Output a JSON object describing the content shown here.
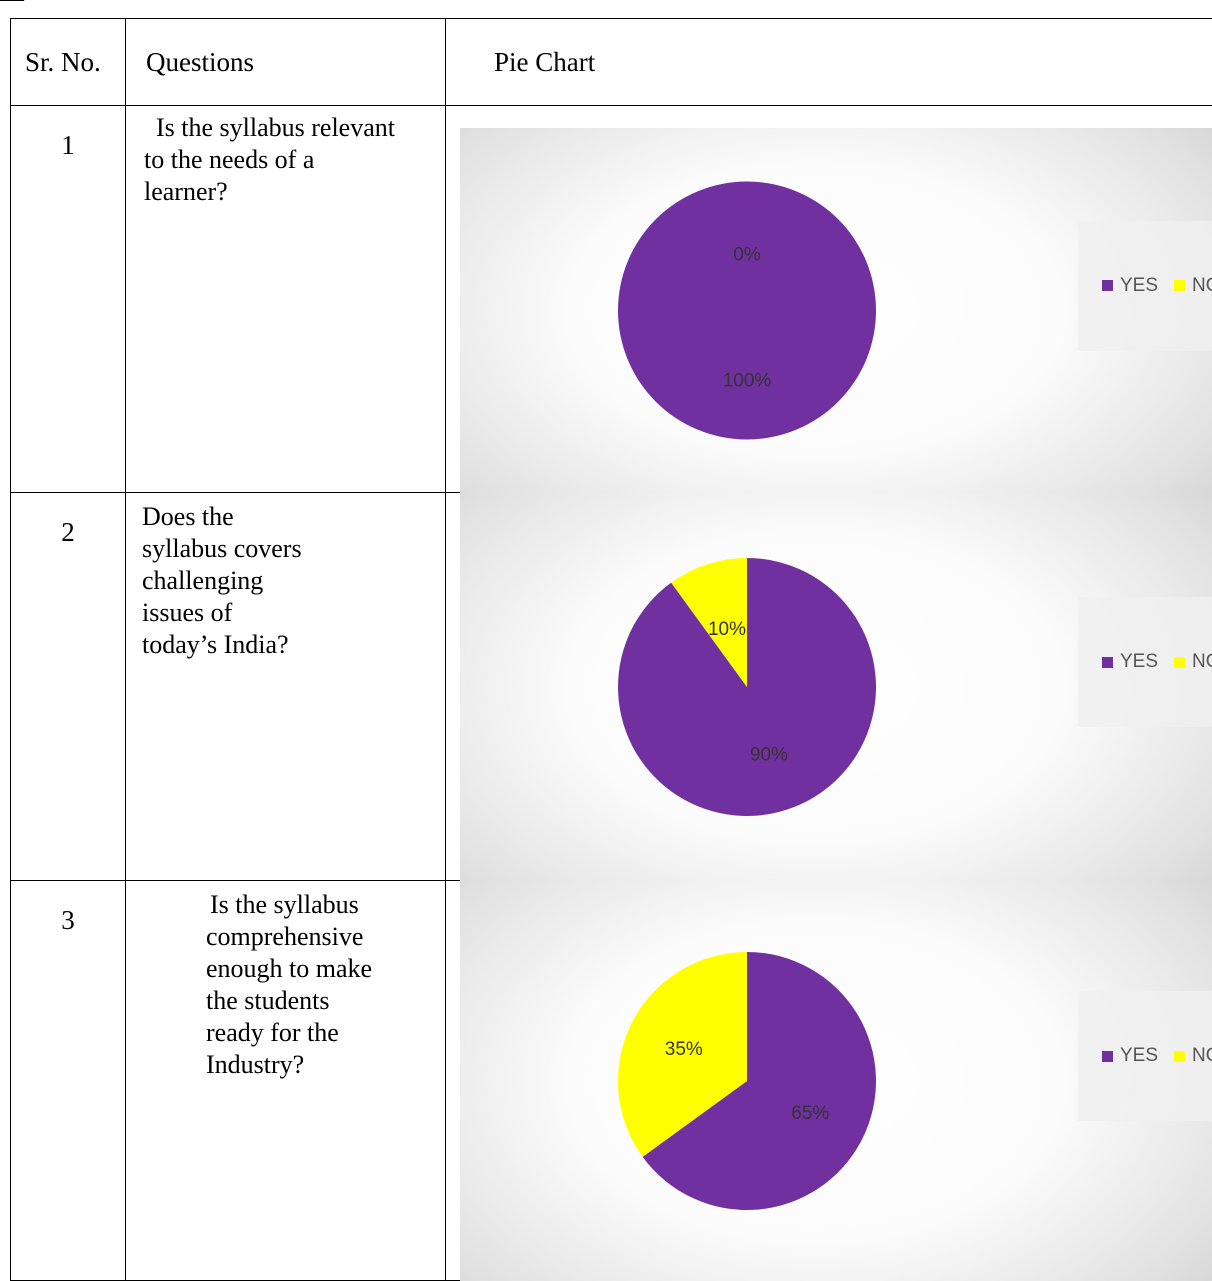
{
  "header": {
    "sr_no": "Sr. No.",
    "questions": "Questions",
    "pie_chart": "Pie Chart"
  },
  "colors": {
    "yes": "#7030A0",
    "no": "#FFFF00"
  },
  "rows": [
    {
      "sr": "1",
      "question_lines": [
        "Is the syllabus relevant",
        "to the needs of a",
        "learner?"
      ]
    },
    {
      "sr": "2",
      "question_lines": [
        "Does the",
        "syllabus covers",
        "challenging",
        "issues of",
        "today’s India?"
      ]
    },
    {
      "sr": "3",
      "question_lines": [
        "Is the syllabus",
        "comprehensive",
        "enough to make",
        "the students",
        "ready for the",
        "Industry?"
      ]
    }
  ],
  "chart_data": [
    {
      "type": "pie",
      "categories": [
        "YES",
        "NO"
      ],
      "values": [
        100,
        0
      ],
      "labels": [
        "100%",
        "0%"
      ],
      "legend": [
        "YES",
        "NO"
      ],
      "legend_position": "right"
    },
    {
      "type": "pie",
      "categories": [
        "YES",
        "NO"
      ],
      "values": [
        90,
        10
      ],
      "labels": [
        "90%",
        "10%"
      ],
      "legend": [
        "YES",
        "NO"
      ],
      "legend_position": "right"
    },
    {
      "type": "pie",
      "categories": [
        "YES",
        "NO"
      ],
      "values": [
        65,
        35
      ],
      "labels": [
        "65%",
        "35%"
      ],
      "legend": [
        "YES",
        "NO"
      ],
      "legend_position": "right"
    }
  ]
}
